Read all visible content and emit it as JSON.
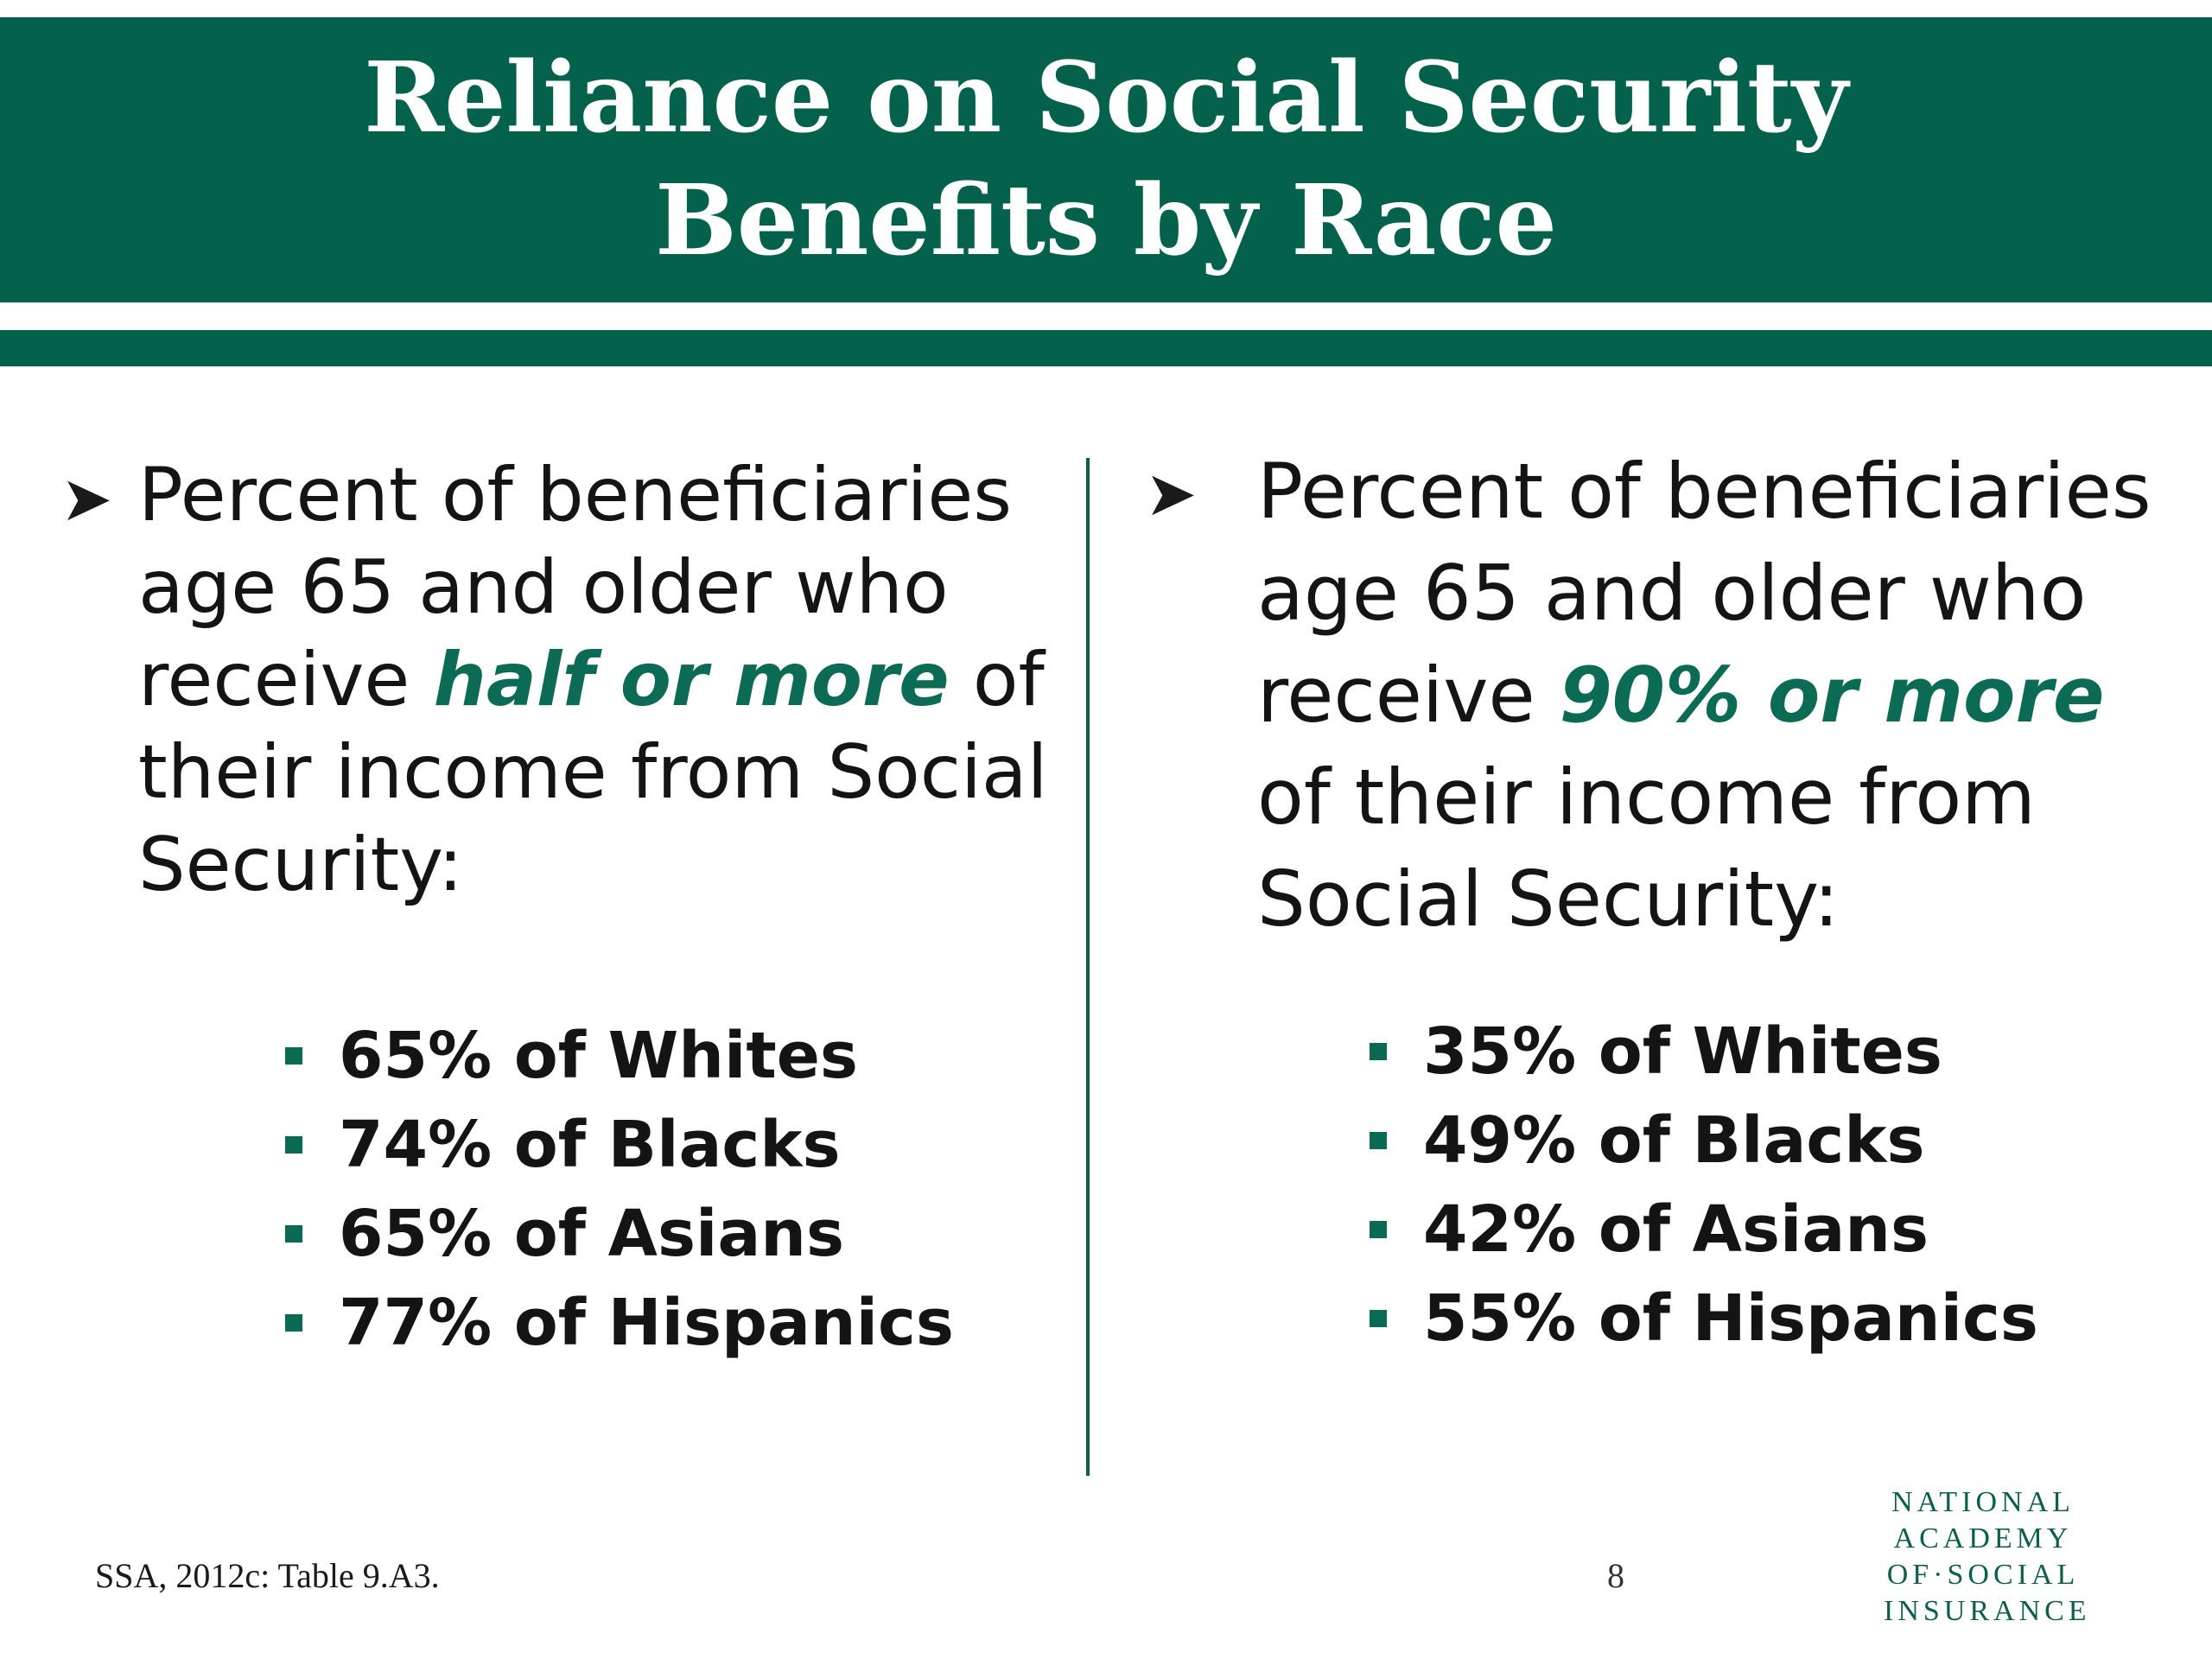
{
  "title": {
    "line1": "Reliance on Social Security",
    "line2": "Benefits by Race"
  },
  "left": {
    "bullet_icon": "arrow-bullet-icon",
    "lead_before": "Percent of beneficiaries age 65 and older who receive ",
    "emphasis": "half or more",
    "lead_after": " of their income from Social Security:",
    "stats": [
      "65% of Whites",
      "74% of Blacks",
      "65% of Asians",
      "77% of Hispanics"
    ]
  },
  "right": {
    "bullet_icon": "arrow-bullet-icon",
    "lead_before": "Percent of beneficiaries age 65 and older who receive ",
    "emphasis": "90% or more",
    "lead_after": " of their income from Social Security:",
    "stats": [
      "35% of Whites",
      "49% of Blacks",
      "42% of Asians",
      "55% of Hispanics"
    ]
  },
  "footer": {
    "source": "SSA, 2012c: Table 9.A3.",
    "page_number": "8",
    "logo_lines": [
      "NATIONAL",
      "ACADEMY",
      "OF·SOCIAL",
      "INSURANCE"
    ]
  },
  "colors": {
    "brand_green": "#04624c",
    "emphasis_green": "#0b6b55"
  }
}
